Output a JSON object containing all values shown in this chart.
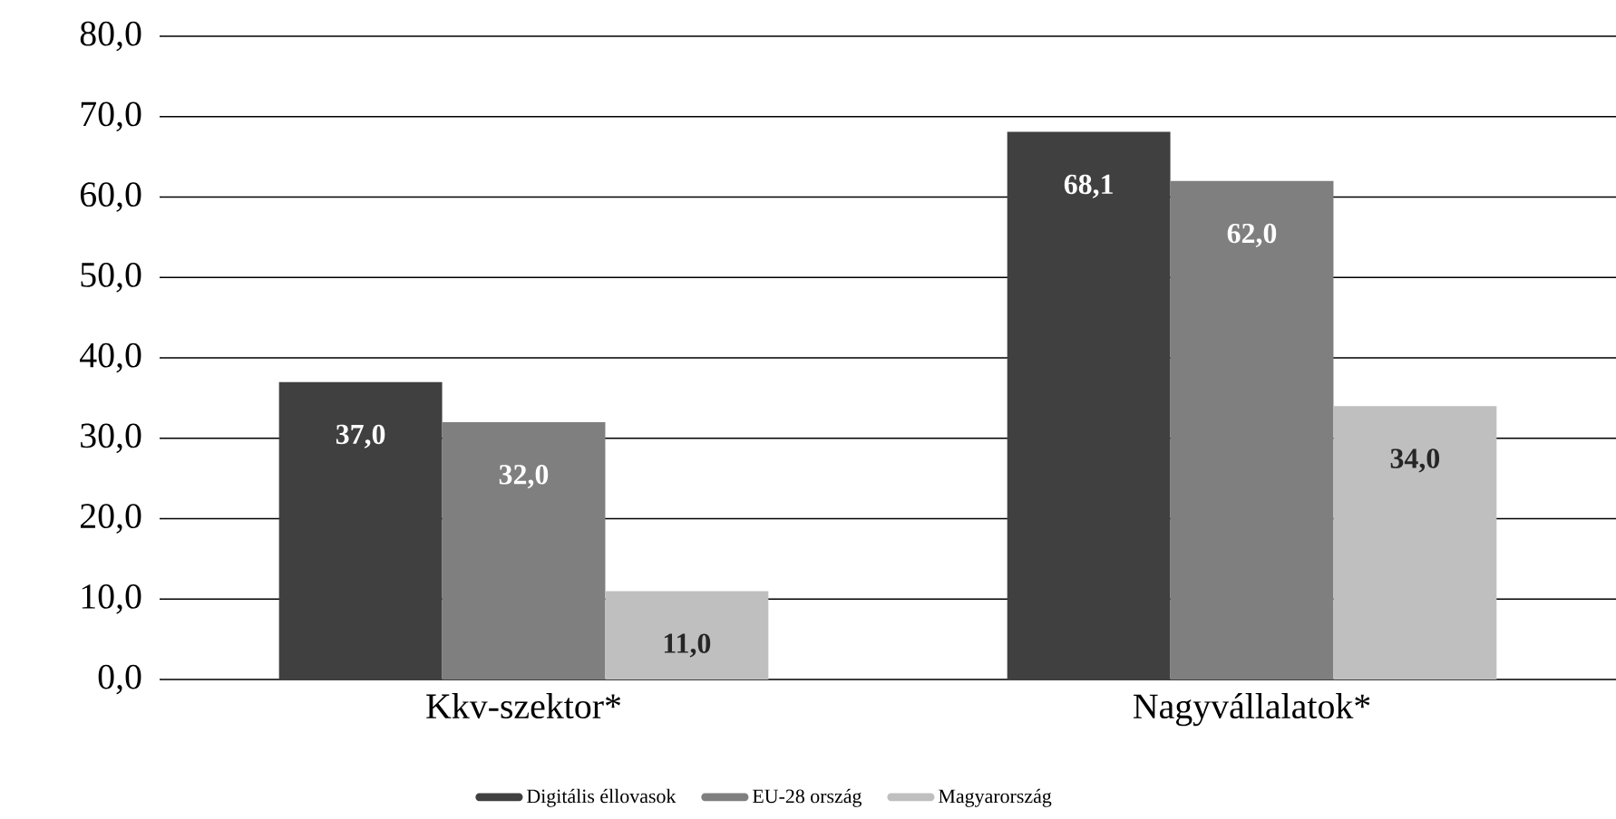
{
  "chart_data": {
    "type": "bar",
    "categories": [
      "Kkv-szektor*",
      "Nagyvállalatok*"
    ],
    "series": [
      {
        "name": "Digitális éllovasok",
        "color": "#404040",
        "values": [
          37.0,
          68.1
        ],
        "value_labels": [
          "37,0",
          "68,1"
        ]
      },
      {
        "name": "EU-28 ország",
        "color": "#7f7f7f",
        "values": [
          32.0,
          62.0
        ],
        "value_labels": [
          "32,0",
          "62,0"
        ]
      },
      {
        "name": "Magyarország",
        "color": "#bfbfbf",
        "values": [
          11.0,
          34.0
        ],
        "value_labels": [
          "11,0",
          "34,0"
        ]
      }
    ],
    "ylim": [
      0,
      80
    ],
    "yticks": [
      {
        "value": 0,
        "label": "0,0"
      },
      {
        "value": 10,
        "label": "10,0"
      },
      {
        "value": 20,
        "label": "20,0"
      },
      {
        "value": 30,
        "label": "30,0"
      },
      {
        "value": 40,
        "label": "40,0"
      },
      {
        "value": 50,
        "label": "50,0"
      },
      {
        "value": 60,
        "label": "60,0"
      },
      {
        "value": 70,
        "label": "70,0"
      },
      {
        "value": 80,
        "label": "80,0"
      }
    ],
    "grid": "y",
    "legend": "bottom"
  }
}
